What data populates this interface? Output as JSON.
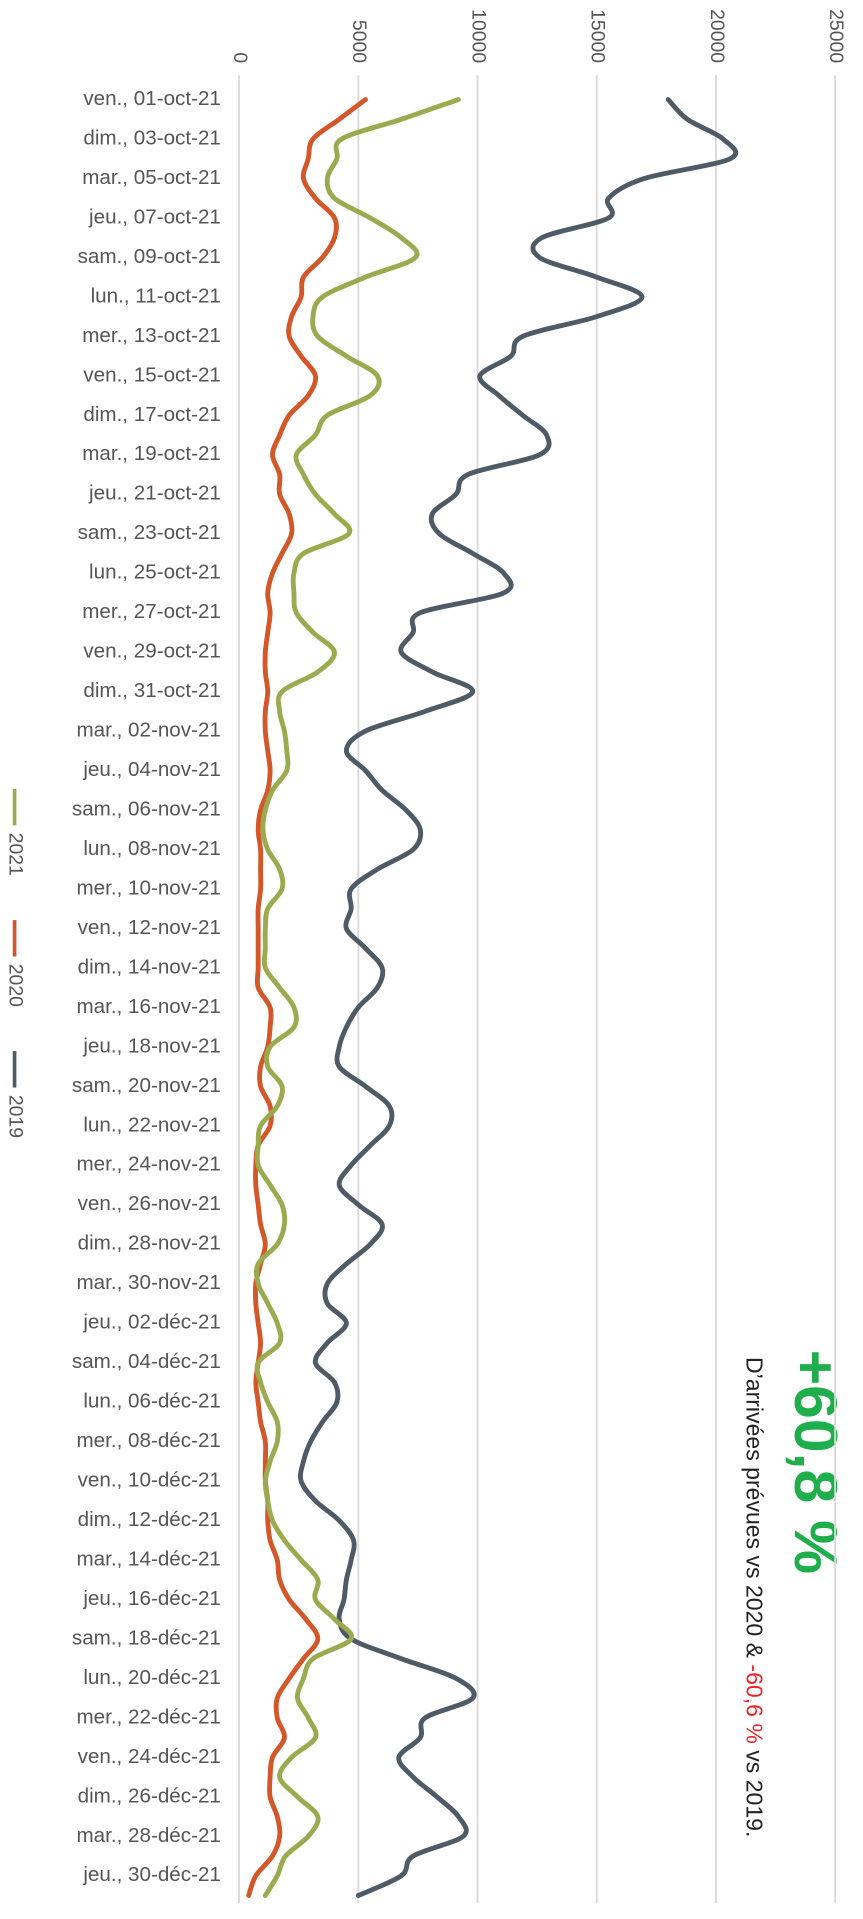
{
  "chart_data": {
    "type": "line",
    "orientation": "horizontal",
    "categories": [
      "ven., 01-oct-21",
      null,
      "dim., 03-oct-21",
      null,
      "mar., 05-oct-21",
      null,
      "jeu., 07-oct-21",
      null,
      "sam., 09-oct-21",
      null,
      "lun., 11-oct-21",
      null,
      "mer., 13-oct-21",
      null,
      "ven., 15-oct-21",
      null,
      "dim., 17-oct-21",
      null,
      "mar., 19-oct-21",
      null,
      "jeu., 21-oct-21",
      null,
      "sam., 23-oct-21",
      null,
      "lun., 25-oct-21",
      null,
      "mer., 27-oct-21",
      null,
      "ven., 29-oct-21",
      null,
      "dim., 31-oct-21",
      null,
      "mar., 02-nov-21",
      null,
      "jeu., 04-nov-21",
      null,
      "sam., 06-nov-21",
      null,
      "lun., 08-nov-21",
      null,
      "mer., 10-nov-21",
      null,
      "ven., 12-nov-21",
      null,
      "dim., 14-nov-21",
      null,
      "mar., 16-nov-21",
      null,
      "jeu., 18-nov-21",
      null,
      "sam., 20-nov-21",
      null,
      "lun., 22-nov-21",
      null,
      "mer., 24-nov-21",
      null,
      "ven., 26-nov-21",
      null,
      "dim., 28-nov-21",
      null,
      "mar., 30-nov-21",
      null,
      "jeu., 02-déc-21",
      null,
      "sam., 04-déc-21",
      null,
      "lun., 06-déc-21",
      null,
      "mer., 08-déc-21",
      null,
      "ven., 10-déc-21",
      null,
      "dim., 12-déc-21",
      null,
      "mar., 14-déc-21",
      null,
      "jeu., 16-déc-21",
      null,
      "sam., 18-déc-21",
      null,
      "lun., 20-déc-21",
      null,
      "mer., 22-déc-21",
      null,
      "ven., 24-déc-21",
      null,
      "dim., 26-déc-21",
      null,
      "mar., 28-déc-21",
      null,
      "jeu., 30-déc-21",
      null
    ],
    "series": [
      {
        "name": "2021",
        "color": "#9aab4f",
        "values": [
          9200,
          6800,
          4300,
          4100,
          3700,
          4000,
          5500,
          6800,
          7400,
          5300,
          3500,
          3100,
          3300,
          4500,
          5800,
          5500,
          3700,
          3200,
          2400,
          2700,
          3200,
          4000,
          4600,
          2700,
          2300,
          2300,
          2400,
          3100,
          4000,
          3300,
          1800,
          1700,
          1900,
          2000,
          2000,
          1400,
          1100,
          1000,
          1200,
          1700,
          1800,
          1200,
          1100,
          1100,
          1100,
          1700,
          2300,
          2300,
          1300,
          1200,
          1800,
          1600,
          900,
          800,
          800,
          1300,
          1800,
          1900,
          1600,
          800,
          800,
          1200,
          1600,
          1700,
          800,
          900,
          1200,
          1600,
          1600,
          1300,
          1100,
          1200,
          1400,
          1900,
          2600,
          3300,
          3200,
          4000,
          4700,
          3100,
          2700,
          2450,
          2900,
          3200,
          2200,
          1700,
          2450,
          3300,
          2900,
          1950,
          1600,
          1100
        ]
      },
      {
        "name": "2020",
        "color": "#d4572a",
        "values": [
          5300,
          4200,
          3100,
          2900,
          2700,
          3200,
          4000,
          4000,
          3500,
          2700,
          2600,
          2200,
          2100,
          2600,
          3200,
          2900,
          2100,
          1700,
          1400,
          1700,
          1700,
          2100,
          2200,
          1800,
          1400,
          1200,
          1300,
          1200,
          1100,
          1100,
          1200,
          1100,
          1100,
          1200,
          1300,
          1200,
          900,
          800,
          900,
          900,
          900,
          800,
          800,
          800,
          800,
          800,
          1300,
          1300,
          1200,
          900,
          900,
          1300,
          1300,
          800,
          700,
          700,
          800,
          900,
          1100,
          900,
          700,
          700,
          800,
          900,
          800,
          700,
          800,
          900,
          1100,
          1100,
          1100,
          1200,
          1200,
          1300,
          1600,
          1700,
          2100,
          2800,
          3300,
          2700,
          2100,
          1600,
          1600,
          1900,
          1400,
          1300,
          1300,
          1600,
          1700,
          1400,
          700,
          400
        ]
      },
      {
        "name": "2019",
        "color": "#4e5a65",
        "values": [
          18000,
          18800,
          20300,
          20600,
          17000,
          15500,
          15500,
          12700,
          12600,
          15000,
          16900,
          15000,
          11900,
          11400,
          10100,
          10900,
          11900,
          12900,
          12600,
          9600,
          9100,
          8100,
          8400,
          9800,
          11100,
          11100,
          7600,
          7300,
          6800,
          8100,
          9800,
          7800,
          5300,
          4500,
          5300,
          6000,
          7000,
          7600,
          7300,
          5800,
          4700,
          4700,
          4500,
          5300,
          6000,
          5800,
          5000,
          4500,
          4200,
          4200,
          5300,
          6300,
          6300,
          5500,
          4700,
          4200,
          5000,
          6000,
          5500,
          4500,
          3700,
          3700,
          4500,
          3700,
          3200,
          4000,
          4100,
          3500,
          3000,
          2700,
          2600,
          3200,
          4200,
          4800,
          4700,
          4500,
          4400,
          4200,
          4700,
          6800,
          9100,
          9800,
          7800,
          7600,
          6700,
          7300,
          8300,
          9200,
          9400,
          7300,
          6800,
          5000
        ]
      }
    ],
    "ylim": [
      0,
      25000
    ],
    "yticks": [
      0,
      5000,
      10000,
      15000,
      20000,
      25000
    ],
    "grid": true
  },
  "kpi": {
    "value": "+60,8 %",
    "text_before": "D’arrivées prévues vs 2020 & ",
    "highlight": "-60,6 %",
    "text_after": " vs 2019."
  }
}
